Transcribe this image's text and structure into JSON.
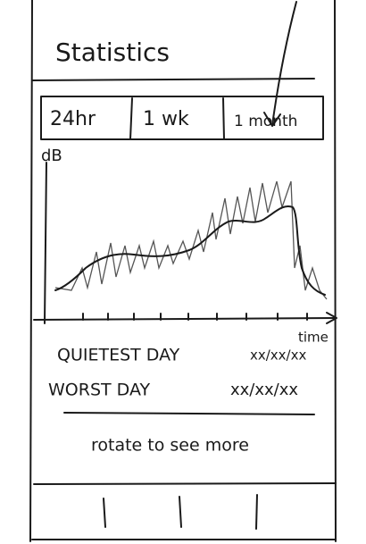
{
  "header": {
    "title": "Statistics"
  },
  "tabs": [
    "24hr",
    "1 wk",
    "1 month"
  ],
  "graph": {
    "y_axis_label": "dB",
    "x_axis_label": "time"
  },
  "stats": [
    {
      "label": "QUIETEST DAY",
      "value": "xx/xx/xx"
    },
    {
      "label": "WORST DAY",
      "value": "xx/xx/xx"
    }
  ],
  "hint": "rotate to see more"
}
